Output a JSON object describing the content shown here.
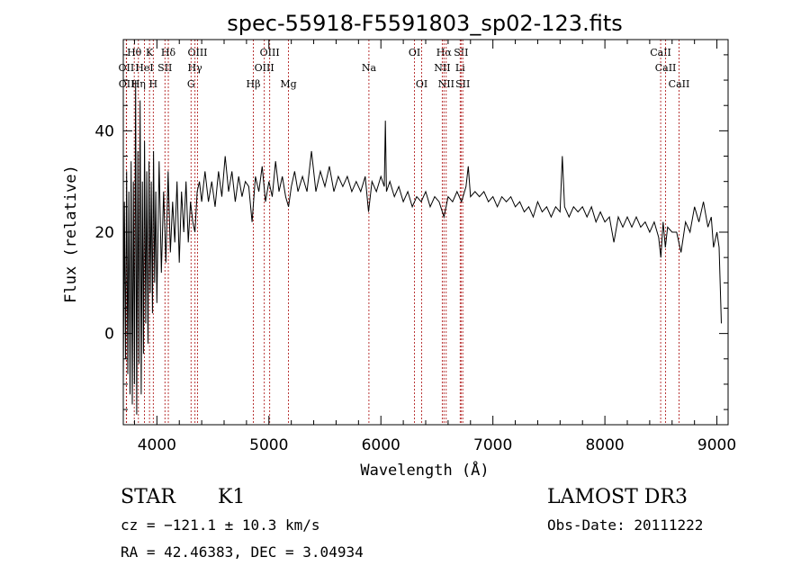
{
  "chart_data": {
    "type": "line",
    "title": "spec-55918-F5591803_sp02-123.fits",
    "xlabel": "Wavelength (Å)",
    "ylabel": "Flux (relative)",
    "xlim": [
      3700,
      9100
    ],
    "ylim": [
      -18,
      58
    ],
    "x_ticks": [
      4000,
      5000,
      6000,
      7000,
      8000,
      9000
    ],
    "y_ticks": [
      0,
      20,
      40
    ],
    "grid": false,
    "series": [
      {
        "name": "flux",
        "points": [
          [
            3700,
            -10
          ],
          [
            3710,
            26
          ],
          [
            3720,
            -5
          ],
          [
            3730,
            32
          ],
          [
            3740,
            -8
          ],
          [
            3750,
            28
          ],
          [
            3760,
            -12
          ],
          [
            3770,
            34
          ],
          [
            3780,
            -14
          ],
          [
            3790,
            30
          ],
          [
            3800,
            -10
          ],
          [
            3810,
            50
          ],
          [
            3820,
            -16
          ],
          [
            3830,
            36
          ],
          [
            3840,
            -6
          ],
          [
            3850,
            46
          ],
          [
            3860,
            -12
          ],
          [
            3870,
            30
          ],
          [
            3880,
            -4
          ],
          [
            3890,
            38
          ],
          [
            3900,
            2
          ],
          [
            3910,
            32
          ],
          [
            3920,
            -2
          ],
          [
            3930,
            34
          ],
          [
            3940,
            8
          ],
          [
            3950,
            30
          ],
          [
            3960,
            4
          ],
          [
            3970,
            36
          ],
          [
            3980,
            10
          ],
          [
            3990,
            28
          ],
          [
            4000,
            6
          ],
          [
            4020,
            34
          ],
          [
            4040,
            12
          ],
          [
            4060,
            28
          ],
          [
            4080,
            14
          ],
          [
            4100,
            32
          ],
          [
            4120,
            16
          ],
          [
            4140,
            26
          ],
          [
            4160,
            18
          ],
          [
            4180,
            30
          ],
          [
            4200,
            14
          ],
          [
            4220,
            28
          ],
          [
            4240,
            20
          ],
          [
            4260,
            30
          ],
          [
            4280,
            18
          ],
          [
            4300,
            26
          ],
          [
            4320,
            22
          ],
          [
            4340,
            20
          ],
          [
            4360,
            28
          ],
          [
            4380,
            30
          ],
          [
            4400,
            26
          ],
          [
            4430,
            32
          ],
          [
            4460,
            26
          ],
          [
            4490,
            30
          ],
          [
            4520,
            25
          ],
          [
            4550,
            32
          ],
          [
            4580,
            27
          ],
          [
            4610,
            35
          ],
          [
            4640,
            28
          ],
          [
            4670,
            32
          ],
          [
            4700,
            26
          ],
          [
            4730,
            31
          ],
          [
            4760,
            27
          ],
          [
            4790,
            30
          ],
          [
            4820,
            29
          ],
          [
            4850,
            22
          ],
          [
            4880,
            31
          ],
          [
            4910,
            28
          ],
          [
            4940,
            33
          ],
          [
            4970,
            26
          ],
          [
            5000,
            30
          ],
          [
            5030,
            27
          ],
          [
            5060,
            34
          ],
          [
            5090,
            28
          ],
          [
            5120,
            31
          ],
          [
            5150,
            27
          ],
          [
            5175,
            25
          ],
          [
            5200,
            29
          ],
          [
            5230,
            32
          ],
          [
            5260,
            28
          ],
          [
            5300,
            31
          ],
          [
            5340,
            28
          ],
          [
            5380,
            36
          ],
          [
            5420,
            28
          ],
          [
            5460,
            32
          ],
          [
            5500,
            29
          ],
          [
            5540,
            33
          ],
          [
            5580,
            28
          ],
          [
            5620,
            31
          ],
          [
            5660,
            29
          ],
          [
            5700,
            31
          ],
          [
            5740,
            28
          ],
          [
            5780,
            30
          ],
          [
            5820,
            28
          ],
          [
            5860,
            31
          ],
          [
            5890,
            24
          ],
          [
            5920,
            30
          ],
          [
            5960,
            28
          ],
          [
            6000,
            31
          ],
          [
            6030,
            29
          ],
          [
            6040,
            42
          ],
          [
            6050,
            28
          ],
          [
            6080,
            30
          ],
          [
            6120,
            27
          ],
          [
            6160,
            29
          ],
          [
            6200,
            26
          ],
          [
            6240,
            28
          ],
          [
            6280,
            25
          ],
          [
            6320,
            27
          ],
          [
            6360,
            26
          ],
          [
            6400,
            28
          ],
          [
            6440,
            25
          ],
          [
            6480,
            27
          ],
          [
            6520,
            26
          ],
          [
            6563,
            23
          ],
          [
            6600,
            27
          ],
          [
            6640,
            26
          ],
          [
            6680,
            28
          ],
          [
            6720,
            26
          ],
          [
            6760,
            29
          ],
          [
            6780,
            33
          ],
          [
            6800,
            27
          ],
          [
            6840,
            28
          ],
          [
            6880,
            27
          ],
          [
            6920,
            28
          ],
          [
            6960,
            26
          ],
          [
            7000,
            27
          ],
          [
            7040,
            25
          ],
          [
            7080,
            27
          ],
          [
            7120,
            26
          ],
          [
            7160,
            27
          ],
          [
            7200,
            25
          ],
          [
            7240,
            26
          ],
          [
            7280,
            24
          ],
          [
            7320,
            25
          ],
          [
            7360,
            23
          ],
          [
            7400,
            26
          ],
          [
            7440,
            24
          ],
          [
            7480,
            25
          ],
          [
            7520,
            23
          ],
          [
            7560,
            25
          ],
          [
            7600,
            24
          ],
          [
            7620,
            35
          ],
          [
            7640,
            25
          ],
          [
            7680,
            23
          ],
          [
            7720,
            25
          ],
          [
            7760,
            24
          ],
          [
            7800,
            25
          ],
          [
            7840,
            23
          ],
          [
            7880,
            25
          ],
          [
            7920,
            22
          ],
          [
            7960,
            24
          ],
          [
            8000,
            22
          ],
          [
            8040,
            23
          ],
          [
            8080,
            18
          ],
          [
            8120,
            23
          ],
          [
            8160,
            21
          ],
          [
            8200,
            23
          ],
          [
            8240,
            21
          ],
          [
            8280,
            23
          ],
          [
            8320,
            21
          ],
          [
            8360,
            22
          ],
          [
            8400,
            20
          ],
          [
            8440,
            22
          ],
          [
            8480,
            19
          ],
          [
            8500,
            15
          ],
          [
            8520,
            22
          ],
          [
            8540,
            17
          ],
          [
            8560,
            21
          ],
          [
            8600,
            20
          ],
          [
            8640,
            20
          ],
          [
            8680,
            16
          ],
          [
            8720,
            22
          ],
          [
            8760,
            20
          ],
          [
            8800,
            25
          ],
          [
            8840,
            22
          ],
          [
            8880,
            26
          ],
          [
            8920,
            21
          ],
          [
            8950,
            23
          ],
          [
            8970,
            17
          ],
          [
            9000,
            20
          ],
          [
            9020,
            17
          ],
          [
            9040,
            2
          ]
        ]
      }
    ],
    "line_markers": [
      {
        "label": "Hθ",
        "wavelength": 3798,
        "row": 1
      },
      {
        "label": "K",
        "wavelength": 3934,
        "row": 1
      },
      {
        "label": "Hδ",
        "wavelength": 4102,
        "row": 1
      },
      {
        "label": "OIII",
        "wavelength": 4363,
        "row": 1
      },
      {
        "label": "OIII",
        "wavelength": 5007,
        "row": 1
      },
      {
        "label": "OI",
        "wavelength": 6300,
        "row": 1
      },
      {
        "label": "Hα",
        "wavelength": 6563,
        "row": 1
      },
      {
        "label": "SII",
        "wavelength": 6716,
        "row": 1
      },
      {
        "label": "CaII",
        "wavelength": 8498,
        "row": 1
      },
      {
        "label": "OII",
        "wavelength": 3727,
        "row": 2
      },
      {
        "label": "HeI",
        "wavelength": 3889,
        "row": 2
      },
      {
        "label": "SII",
        "wavelength": 4072,
        "row": 2
      },
      {
        "label": "Hγ",
        "wavelength": 4340,
        "row": 2
      },
      {
        "label": "OIII",
        "wavelength": 4959,
        "row": 2
      },
      {
        "label": "Na",
        "wavelength": 5893,
        "row": 2
      },
      {
        "label": "NII",
        "wavelength": 6548,
        "row": 2
      },
      {
        "label": "Li",
        "wavelength": 6708,
        "row": 2
      },
      {
        "label": "CaII",
        "wavelength": 8542,
        "row": 2
      },
      {
        "label": "OII",
        "wavelength": 3729,
        "row": 3
      },
      {
        "label": "Hη",
        "wavelength": 3835,
        "row": 3
      },
      {
        "label": "H",
        "wavelength": 3968,
        "row": 3
      },
      {
        "label": "G",
        "wavelength": 4305,
        "row": 3
      },
      {
        "label": "Hβ",
        "wavelength": 4861,
        "row": 3
      },
      {
        "label": "Mg",
        "wavelength": 5175,
        "row": 3
      },
      {
        "label": "OI",
        "wavelength": 6364,
        "row": 3
      },
      {
        "label": "NII",
        "wavelength": 6583,
        "row": 3
      },
      {
        "label": "SII",
        "wavelength": 6731,
        "row": 3
      },
      {
        "label": "CaII",
        "wavelength": 8662,
        "row": 3
      }
    ]
  },
  "info": {
    "class": "STAR",
    "subclass": "K1",
    "survey": "LAMOST DR3",
    "cz": "cz = −121.1 ± 10.3 km/s",
    "obs_date": "Obs-Date: 20111222",
    "coords": "RA =  42.46383, DEC =   3.04934"
  }
}
